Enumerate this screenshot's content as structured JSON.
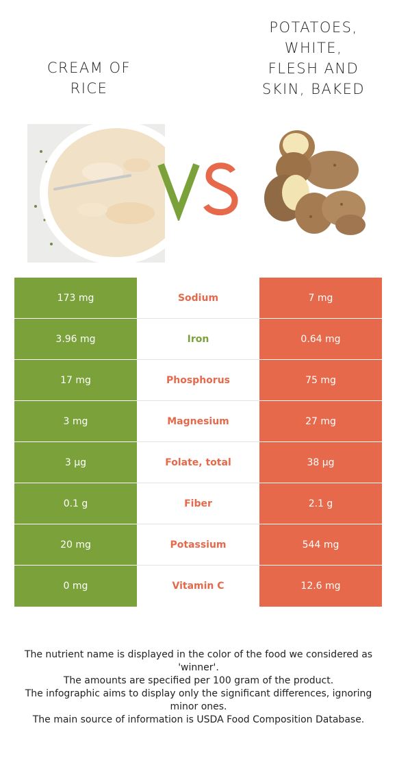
{
  "left_food": {
    "name": "CREAM OF\nRICE",
    "color": "#7ba23a",
    "image_icon": "bowl-of-cream-of-rice"
  },
  "right_food": {
    "name": "POTATOES,\nWHITE,\nFLESH AND\nSKIN, BAKED",
    "color": "#e5694a",
    "image_icon": "pile-of-potatoes"
  },
  "vs": {
    "v": "V",
    "s": "S"
  },
  "nutrients": [
    {
      "left": "173 mg",
      "name": "Sodium",
      "right": "7 mg",
      "winner": "right"
    },
    {
      "left": "3.96 mg",
      "name": "Iron",
      "right": "0.64 mg",
      "winner": "left"
    },
    {
      "left": "17 mg",
      "name": "Phosphorus",
      "right": "75 mg",
      "winner": "right"
    },
    {
      "left": "3 mg",
      "name": "Magnesium",
      "right": "27 mg",
      "winner": "right"
    },
    {
      "left": "3 µg",
      "name": "Folate, total",
      "right": "38 µg",
      "winner": "right"
    },
    {
      "left": "0.1 g",
      "name": "Fiber",
      "right": "2.1 g",
      "winner": "right"
    },
    {
      "left": "20 mg",
      "name": "Potassium",
      "right": "544 mg",
      "winner": "right"
    },
    {
      "left": "0 mg",
      "name": "Vitamin C",
      "right": "12.6 mg",
      "winner": "right"
    }
  ],
  "footer": [
    "The nutrient name is displayed in the color of the food we considered as 'winner'.",
    "The amounts are specified per 100 gram of the product.",
    "The infographic aims to display only the significant differences, ignoring minor ones.",
    "The main source of information is USDA Food Composition Database."
  ]
}
